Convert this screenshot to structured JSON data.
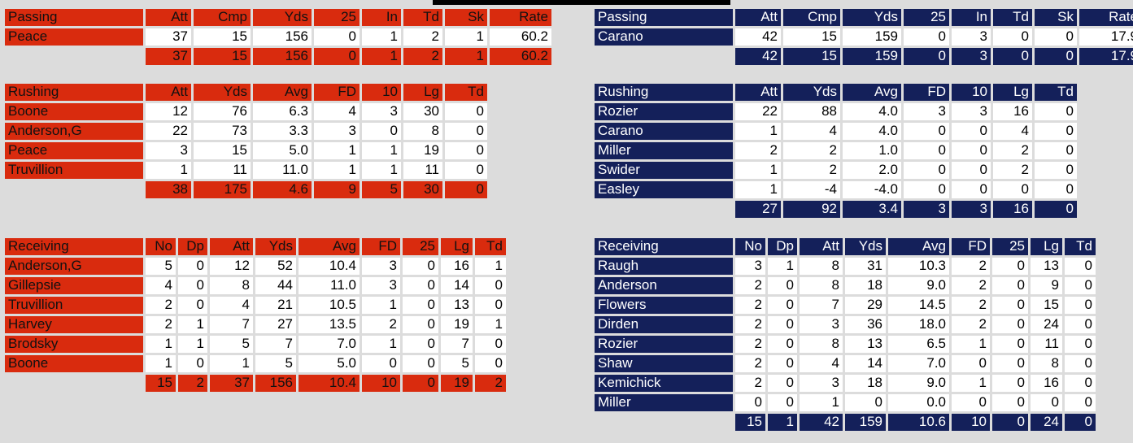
{
  "left_team": {
    "passing": {
      "columns": [
        "Passing",
        "Att",
        "Cmp",
        "Yds",
        "25",
        "In",
        "Td",
        "Sk",
        "Rate"
      ],
      "rows": [
        [
          "Peace",
          "37",
          "15",
          "156",
          "0",
          "1",
          "2",
          "1",
          "60.2"
        ]
      ],
      "total": [
        "37",
        "15",
        "156",
        "0",
        "1",
        "2",
        "1",
        "60.2"
      ]
    },
    "rushing": {
      "columns": [
        "Rushing",
        "Att",
        "Yds",
        "Avg",
        "FD",
        "10",
        "Lg",
        "Td"
      ],
      "rows": [
        [
          "Boone",
          "12",
          "76",
          "6.3",
          "4",
          "3",
          "30",
          "0"
        ],
        [
          "Anderson,G",
          "22",
          "73",
          "3.3",
          "3",
          "0",
          "8",
          "0"
        ],
        [
          "Peace",
          "3",
          "15",
          "5.0",
          "1",
          "1",
          "19",
          "0"
        ],
        [
          "Truvillion",
          "1",
          "11",
          "11.0",
          "1",
          "1",
          "11",
          "0"
        ]
      ],
      "total": [
        "38",
        "175",
        "4.6",
        "9",
        "5",
        "30",
        "0"
      ]
    },
    "receiving": {
      "columns": [
        "Receiving",
        "No",
        "Dp",
        "Att",
        "Yds",
        "Avg",
        "FD",
        "25",
        "Lg",
        "Td"
      ],
      "rows": [
        [
          "Anderson,G",
          "5",
          "0",
          "12",
          "52",
          "10.4",
          "3",
          "0",
          "16",
          "1"
        ],
        [
          "Gillepsie",
          "4",
          "0",
          "8",
          "44",
          "11.0",
          "3",
          "0",
          "14",
          "0"
        ],
        [
          "Truvillion",
          "2",
          "0",
          "4",
          "21",
          "10.5",
          "1",
          "0",
          "13",
          "0"
        ],
        [
          "Harvey",
          "2",
          "1",
          "7",
          "27",
          "13.5",
          "2",
          "0",
          "19",
          "1"
        ],
        [
          "Brodsky",
          "1",
          "1",
          "5",
          "7",
          "7.0",
          "1",
          "0",
          "7",
          "0"
        ],
        [
          "Boone",
          "1",
          "0",
          "1",
          "5",
          "5.0",
          "0",
          "0",
          "5",
          "0"
        ]
      ],
      "total": [
        "15",
        "2",
        "37",
        "156",
        "10.4",
        "10",
        "0",
        "19",
        "2"
      ]
    }
  },
  "right_team": {
    "passing": {
      "columns": [
        "Passing",
        "Att",
        "Cmp",
        "Yds",
        "25",
        "In",
        "Td",
        "Sk",
        "Rate"
      ],
      "rows": [
        [
          "Carano",
          "42",
          "15",
          "159",
          "0",
          "3",
          "0",
          "0",
          "17.9"
        ]
      ],
      "total": [
        "42",
        "15",
        "159",
        "0",
        "3",
        "0",
        "0",
        "17.9"
      ]
    },
    "rushing": {
      "columns": [
        "Rushing",
        "Att",
        "Yds",
        "Avg",
        "FD",
        "10",
        "Lg",
        "Td"
      ],
      "rows": [
        [
          "Rozier",
          "22",
          "88",
          "4.0",
          "3",
          "3",
          "16",
          "0"
        ],
        [
          "Carano",
          "1",
          "4",
          "4.0",
          "0",
          "0",
          "4",
          "0"
        ],
        [
          "Miller",
          "2",
          "2",
          "1.0",
          "0",
          "0",
          "2",
          "0"
        ],
        [
          "Swider",
          "1",
          "2",
          "2.0",
          "0",
          "0",
          "2",
          "0"
        ],
        [
          "Easley",
          "1",
          "-4",
          "-4.0",
          "0",
          "0",
          "0",
          "0"
        ]
      ],
      "total": [
        "27",
        "92",
        "3.4",
        "3",
        "3",
        "16",
        "0"
      ]
    },
    "receiving": {
      "columns": [
        "Receiving",
        "No",
        "Dp",
        "Att",
        "Yds",
        "Avg",
        "FD",
        "25",
        "Lg",
        "Td"
      ],
      "rows": [
        [
          "Raugh",
          "3",
          "1",
          "8",
          "31",
          "10.3",
          "2",
          "0",
          "13",
          "0"
        ],
        [
          "Anderson",
          "2",
          "0",
          "8",
          "18",
          "9.0",
          "2",
          "0",
          "9",
          "0"
        ],
        [
          "Flowers",
          "2",
          "0",
          "7",
          "29",
          "14.5",
          "2",
          "0",
          "15",
          "0"
        ],
        [
          "Dirden",
          "2",
          "0",
          "3",
          "36",
          "18.0",
          "2",
          "0",
          "24",
          "0"
        ],
        [
          "Rozier",
          "2",
          "0",
          "8",
          "13",
          "6.5",
          "1",
          "0",
          "11",
          "0"
        ],
        [
          "Shaw",
          "2",
          "0",
          "4",
          "14",
          "7.0",
          "0",
          "0",
          "8",
          "0"
        ],
        [
          "Kemichick",
          "2",
          "0",
          "3",
          "18",
          "9.0",
          "1",
          "0",
          "16",
          "0"
        ],
        [
          "Miller",
          "0",
          "0",
          "1",
          "0",
          "0.0",
          "0",
          "0",
          "0",
          "0"
        ]
      ],
      "total": [
        "15",
        "1",
        "42",
        "159",
        "10.6",
        "10",
        "0",
        "24",
        "0"
      ]
    }
  },
  "colors": {
    "left_accent": "#d92b0e",
    "right_accent": "#14205a",
    "background": "#dcdcdc"
  }
}
